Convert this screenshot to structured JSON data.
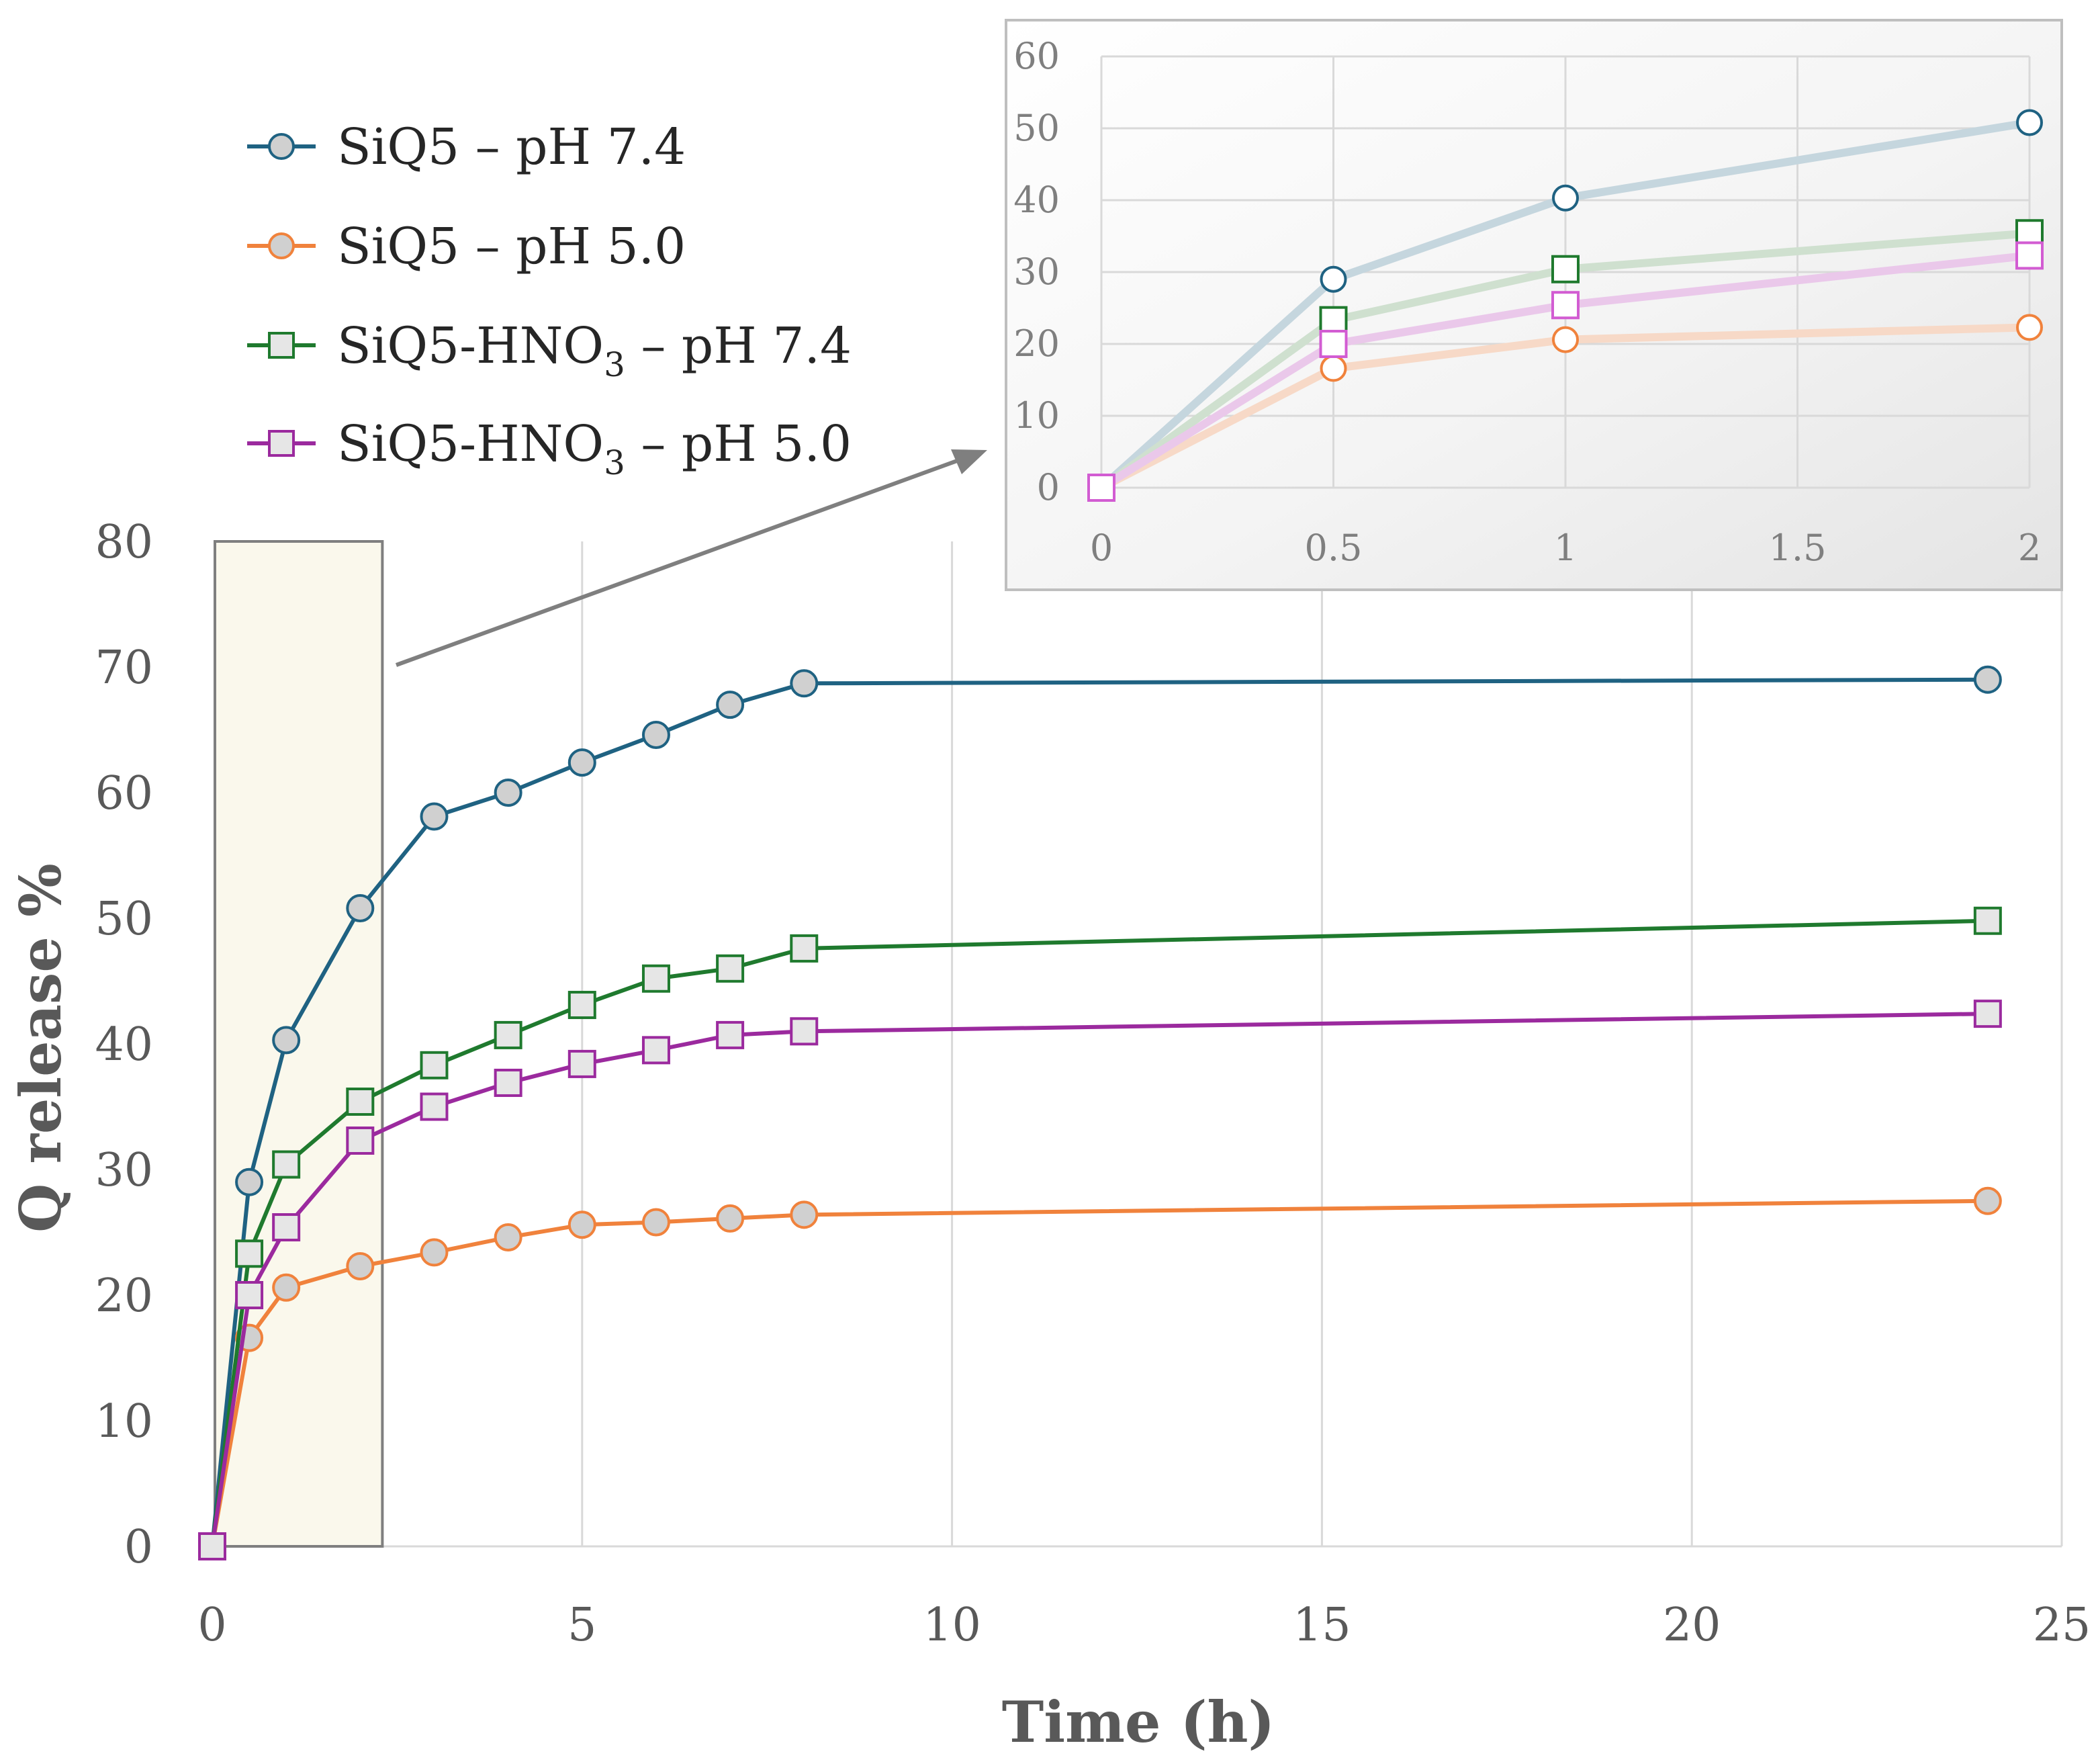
{
  "chart_data": [
    {
      "type": "line",
      "role": "main",
      "title": "",
      "xlabel": "Time (h)",
      "ylabel": "Q release %",
      "xlim": [
        0,
        25
      ],
      "ylim": [
        0,
        80
      ],
      "xticks": [
        "0",
        "5",
        "10",
        "15",
        "20",
        "25"
      ],
      "yticks": [
        "0",
        "10",
        "20",
        "30",
        "40",
        "50",
        "60",
        "70",
        "80"
      ],
      "x": [
        0,
        0.5,
        1,
        2,
        3,
        4,
        5,
        6,
        7,
        8,
        24
      ],
      "highlight_range": [
        0,
        2.3
      ],
      "series": [
        {
          "name": "SiQ5 – pH 7.4",
          "label_main": "SiQ5 – pH 7.4",
          "label_sub": "",
          "label_tail": "",
          "color": "#1F6282",
          "marker": "circle",
          "values": [
            0,
            29,
            40.3,
            50.8,
            58.1,
            60,
            62.4,
            64.6,
            67,
            68.7,
            69
          ]
        },
        {
          "name": "SiQ5 – pH 5.0",
          "label_main": "SiQ5 – pH 5.0",
          "label_sub": "",
          "label_tail": "",
          "color": "#F0823C",
          "marker": "circle",
          "values": [
            0,
            16.6,
            20.6,
            22.3,
            23.4,
            24.6,
            25.6,
            25.8,
            26.1,
            26.4,
            27.5
          ]
        },
        {
          "name": "SiQ5-HNO3 – pH 7.4",
          "label_main": "SiQ5-HNO",
          "label_sub": "3",
          "label_tail": " – pH 7.4",
          "color": "#1F7A2E",
          "marker": "square",
          "values": [
            0,
            23.3,
            30.4,
            35.4,
            38.3,
            40.7,
            43.1,
            45.2,
            46,
            47.6,
            49.8
          ]
        },
        {
          "name": "SiQ5-HNO3 – pH 5.0",
          "label_main": "SiQ5-HNO",
          "label_sub": "3",
          "label_tail": " – pH 5.0",
          "color": "#9B2A9E",
          "marker": "square",
          "values": [
            0,
            20,
            25.4,
            32.3,
            35,
            36.9,
            38.4,
            39.5,
            40.7,
            41,
            42.4
          ]
        }
      ]
    },
    {
      "type": "line",
      "role": "inset",
      "title": "",
      "xlim": [
        0,
        2
      ],
      "ylim": [
        0,
        60
      ],
      "xticks": [
        "0",
        "0.5",
        "1",
        "1.5",
        "2"
      ],
      "yticks": [
        "0",
        "10",
        "20",
        "30",
        "40",
        "50",
        "60"
      ],
      "x": [
        0,
        0.5,
        1,
        2
      ],
      "series": [
        {
          "name": "SiQ5 – pH 7.4",
          "color": "#1F6282",
          "line_color": "#C5D6DE",
          "marker": "circle",
          "values": [
            0,
            29,
            40.3,
            50.8
          ]
        },
        {
          "name": "SiQ5 – pH 5.0",
          "color": "#F0823C",
          "line_color": "#F7D9C7",
          "marker": "circle",
          "values": [
            0,
            16.6,
            20.6,
            22.3
          ]
        },
        {
          "name": "SiQ5-HNO3 – pH 7.4",
          "color": "#1F7A2E",
          "line_color": "#CFE0CF",
          "marker": "square",
          "values": [
            0,
            23.3,
            30.4,
            35.4
          ]
        },
        {
          "name": "SiQ5-HNO3 – pH 5.0",
          "color": "#D25CD2",
          "line_color": "#EAC8EA",
          "marker": "square",
          "values": [
            0,
            20,
            25.4,
            32.3
          ]
        }
      ]
    }
  ]
}
